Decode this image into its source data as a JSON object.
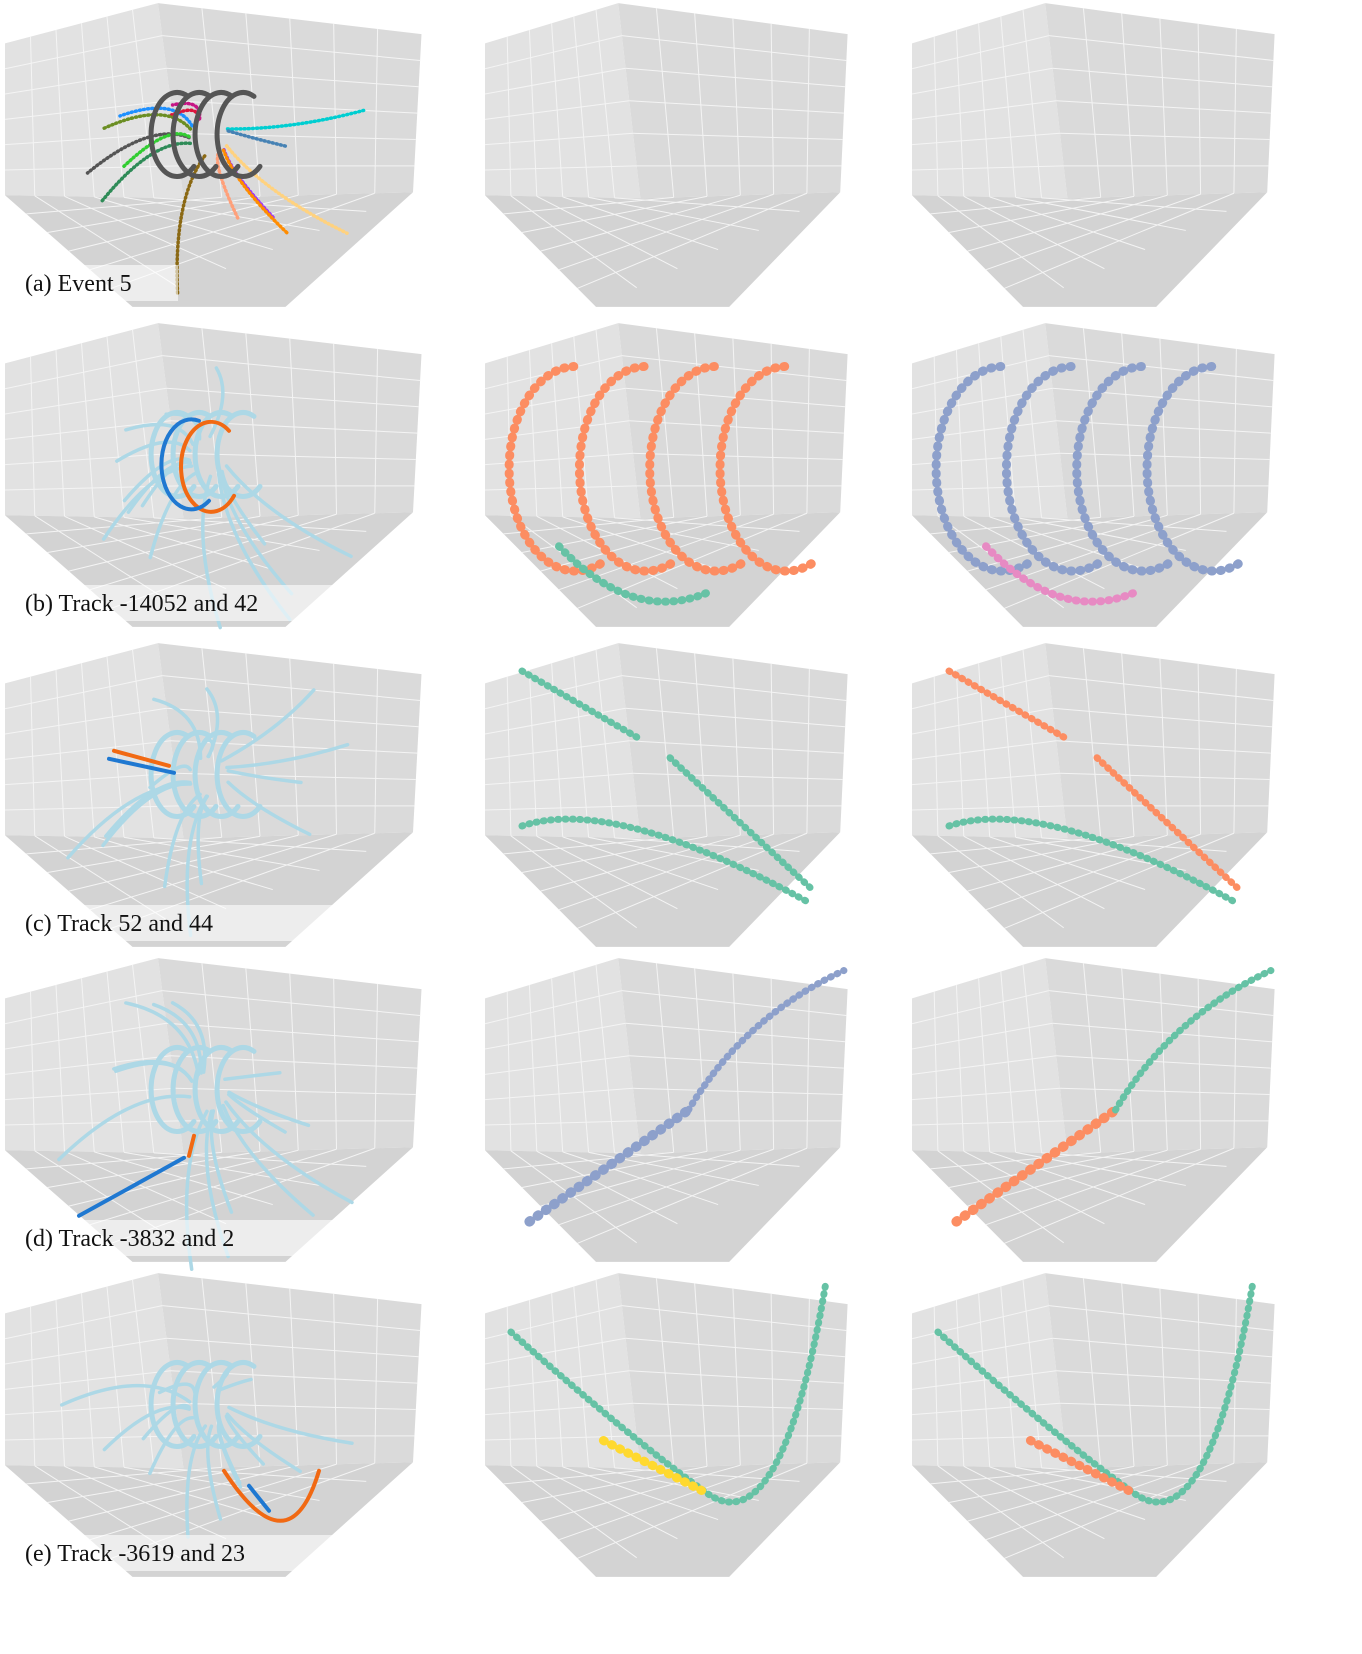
{
  "panels": [
    {
      "caption": "(a) Event 5"
    },
    {
      "caption": "(b) Track -14052 and 42"
    },
    {
      "caption": "(c) Track 52 and 44"
    },
    {
      "caption": "(d) Track -3832 and 2"
    },
    {
      "caption": "(e) Track -3619 and 23"
    }
  ]
}
